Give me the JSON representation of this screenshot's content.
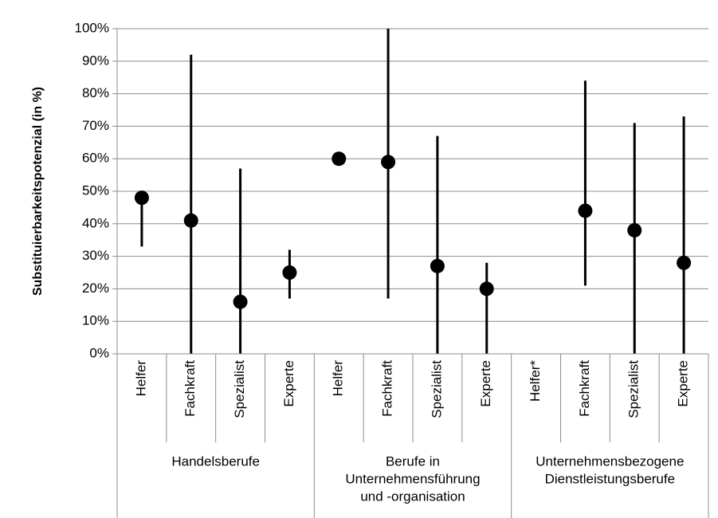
{
  "chart_data": {
    "type": "dot-range",
    "ylabel": "Substituierbarkeitspotenzial (in %)",
    "color": "#000000",
    "grid": true,
    "ylim": [
      0,
      100
    ],
    "yticks": [
      {
        "value": 0,
        "label": "0%"
      },
      {
        "value": 10,
        "label": "10%"
      },
      {
        "value": 20,
        "label": "20%"
      },
      {
        "value": 30,
        "label": "30%"
      },
      {
        "value": 40,
        "label": "40%"
      },
      {
        "value": 50,
        "label": "50%"
      },
      {
        "value": 60,
        "label": "60%"
      },
      {
        "value": 70,
        "label": "70%"
      },
      {
        "value": 80,
        "label": "80%"
      },
      {
        "value": 90,
        "label": "90%"
      },
      {
        "value": 100,
        "label": "100%"
      }
    ],
    "groups": [
      {
        "label": [
          "Handelsberufe"
        ],
        "categories": [
          "Helfer",
          "Fachkraft",
          "Spezialist",
          "Experte"
        ],
        "values": [
          48,
          41,
          16,
          25
        ],
        "low": [
          33,
          0,
          0,
          17
        ],
        "high": [
          50,
          92,
          57,
          32
        ]
      },
      {
        "label": [
          "Berufe in",
          "Unternehmensführung",
          "und -organisation"
        ],
        "categories": [
          "Helfer",
          "Fachkraft",
          "Spezialist",
          "Experte"
        ],
        "values": [
          60,
          59,
          27,
          20
        ],
        "low": [
          null,
          17,
          0,
          0
        ],
        "high": [
          null,
          100,
          67,
          28
        ]
      },
      {
        "label": [
          "Unternehmensbezogene",
          "Dienstleistungsberufe"
        ],
        "categories": [
          "Helfer*",
          "Fachkraft",
          "Spezialist",
          "Experte"
        ],
        "values": [
          null,
          44,
          38,
          28
        ],
        "low": [
          null,
          21,
          0,
          0
        ],
        "high": [
          null,
          84,
          71,
          73
        ]
      }
    ]
  }
}
